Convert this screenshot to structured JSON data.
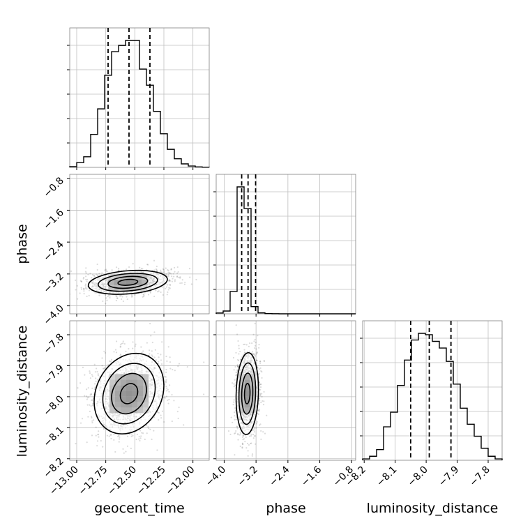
{
  "chart_data": {
    "type": "corner",
    "parameters": [
      "geocent_time",
      "phase",
      "luminosity_distance"
    ],
    "axis_labels": {
      "x": [
        "geocent_time",
        "phase",
        "luminosity_distance"
      ],
      "y": [
        "phase",
        "luminosity_distance"
      ]
    },
    "ranges": {
      "geocent_time": [
        -13.06,
        -11.86
      ],
      "phase": [
        -4.2,
        -0.7
      ],
      "luminosity_distance": [
        -8.205,
        -7.755
      ]
    },
    "ticks": {
      "geocent_time": [
        "-13.00",
        "-12.75",
        "-12.50",
        "-12.25",
        "-12.00"
      ],
      "phase": [
        "-4.0",
        "-3.2",
        "-2.4",
        "-1.6",
        "-0.8"
      ],
      "luminosity_distance": [
        "-8.2",
        "-8.1",
        "-8.0",
        "-7.9",
        "-7.8"
      ]
    },
    "grid": true,
    "histograms": {
      "geocent_time": {
        "bin_edges": [
          -13.06,
          -13.0,
          -12.94,
          -12.88,
          -12.82,
          -12.76,
          -12.7,
          -12.64,
          -12.58,
          -12.52,
          -12.46,
          -12.4,
          -12.34,
          -12.28,
          -12.22,
          -12.16,
          -12.1,
          -12.04,
          -11.98,
          -11.92,
          -11.86
        ],
        "counts": [
          0.6,
          3.8,
          8.5,
          26.5,
          47,
          74,
          93,
          98,
          102,
          102,
          79,
          66,
          45,
          27,
          14.5,
          6.9,
          2.8,
          1.1,
          0.4,
          0.1
        ],
        "quantiles": [
          -12.73,
          -12.55,
          -12.37
        ]
      },
      "phase": {
        "bin_edges": [
          -4.2,
          -4.025,
          -3.85,
          -3.675,
          -3.5,
          -3.325,
          -3.15,
          -2.975,
          -2.8,
          -2.625,
          -2.45,
          -2.275,
          -2.1,
          -1.925,
          -1.75,
          -1.575,
          -1.4,
          -1.225,
          -1.05,
          -0.875,
          -0.7
        ],
        "counts": [
          1,
          3.5,
          28,
          159,
          132,
          9,
          1.2,
          0.3,
          0.1,
          0,
          0,
          0,
          0,
          0,
          0,
          0,
          0,
          0,
          0,
          0
        ],
        "quantiles": [
          -3.56,
          -3.4,
          -3.21
        ]
      },
      "luminosity_distance": {
        "bin_edges": [
          -8.205,
          -8.1825,
          -8.16,
          -8.1375,
          -8.115,
          -8.0925,
          -8.07,
          -8.0475,
          -8.025,
          -8.0025,
          -7.98,
          -7.9575,
          -7.935,
          -7.9125,
          -7.89,
          -7.8675,
          -7.845,
          -7.8225,
          -7.8,
          -7.7775,
          -7.755
        ],
        "counts": [
          1,
          3,
          8,
          25,
          36,
          56,
          75,
          90,
          95,
          94,
          89,
          84,
          74,
          57,
          39,
          27,
          18,
          9,
          3,
          1
        ],
        "quantiles": [
          -8.05,
          -7.99,
          -7.92
        ]
      }
    },
    "joint": [
      {
        "x": "geocent_time",
        "y": "phase",
        "mean": [
          -12.56,
          -3.41
        ],
        "std": [
          0.17,
          0.15
        ],
        "corr": 0.25,
        "contour_levels": [
          "0.5",
          "1.0",
          "1.5",
          "2.0"
        ]
      },
      {
        "x": "geocent_time",
        "y": "luminosity_distance",
        "mean": [
          -12.55,
          -7.99
        ],
        "std": [
          0.15,
          0.065
        ],
        "corr": 0.2,
        "contour_levels": [
          "0.5",
          "1.0",
          "1.5",
          "2.0"
        ]
      },
      {
        "x": "phase",
        "y": "luminosity_distance",
        "mean": [
          -3.42,
          -7.99
        ],
        "std": [
          0.14,
          0.066
        ],
        "corr": 0.1,
        "contour_levels": [
          "0.5",
          "1.0",
          "1.5",
          "2.0"
        ]
      }
    ]
  }
}
